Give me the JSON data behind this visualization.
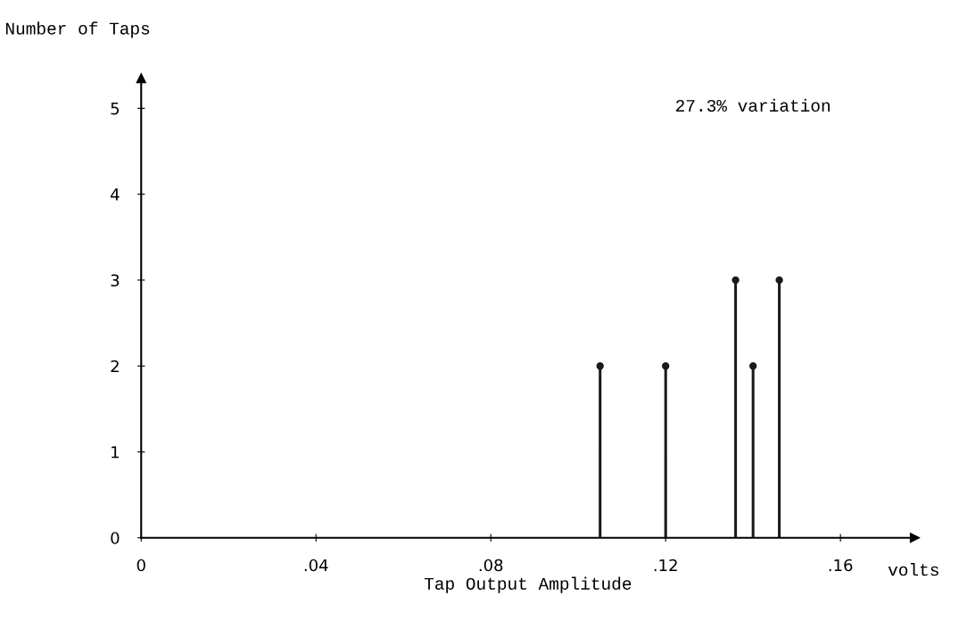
{
  "chart_data": {
    "type": "lollipop",
    "xlabel": "Tap Output Amplitude",
    "ylabel": "Number of Taps",
    "annotations": [
      "27.3% variation",
      "volts"
    ],
    "x": [
      0.105,
      0.12,
      0.136,
      0.14,
      0.146
    ],
    "values": [
      2,
      2,
      3,
      2,
      3
    ],
    "color": "#1a1a1a",
    "marker": "circle",
    "xlim": [
      0,
      0.177
    ],
    "ylim": [
      0,
      5.35
    ],
    "xticks": [
      {
        "value": 0,
        "label": "0"
      },
      {
        "value": 0.04,
        "label": ".04"
      },
      {
        "value": 0.08,
        "label": ".08"
      },
      {
        "value": 0.12,
        "label": ".12"
      },
      {
        "value": 0.16,
        "label": ".16"
      }
    ],
    "yticks": [
      0,
      1,
      2,
      3,
      4,
      5
    ],
    "grid": false,
    "legend": false
  }
}
